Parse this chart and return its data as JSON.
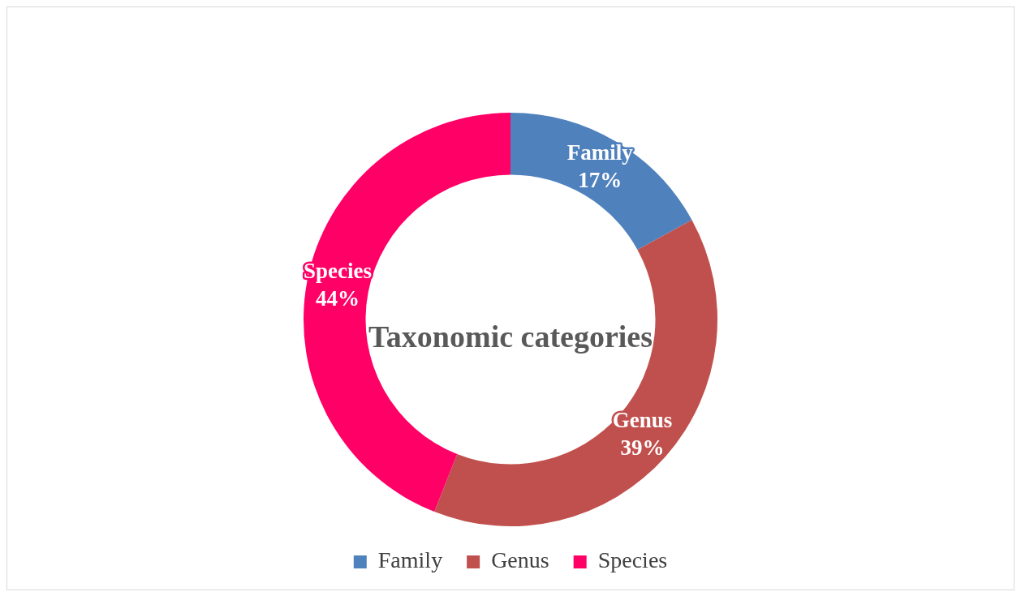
{
  "chart_data": {
    "type": "donut",
    "title": "Taxonomic categories",
    "categories": [
      "Family",
      "Genus",
      "Species"
    ],
    "values": [
      17,
      39,
      44
    ],
    "colors": [
      "#4f81bd",
      "#c0504d",
      "#ff0066"
    ],
    "legend": "bottom",
    "value_labels": [
      "17%",
      "39%",
      "44%"
    ]
  }
}
